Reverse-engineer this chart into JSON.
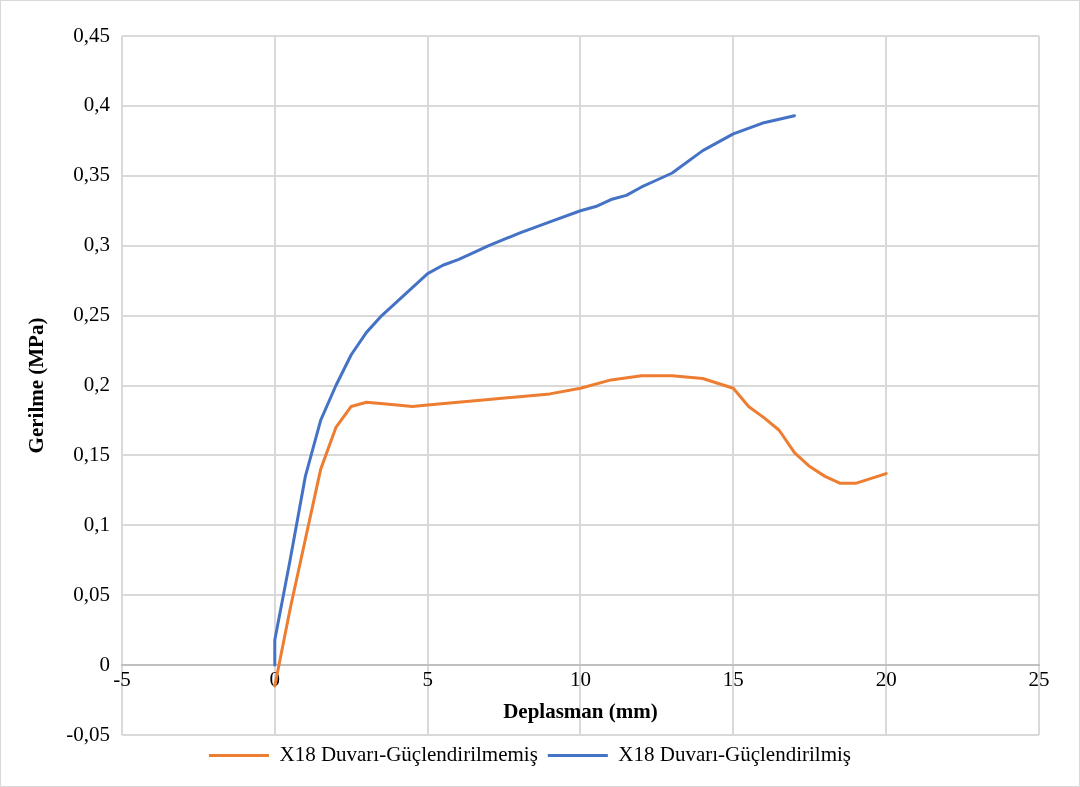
{
  "chart_data": {
    "type": "line",
    "xlabel": "Deplasman (mm)",
    "ylabel": "Gerilme (MPa)",
    "xlim": [
      -5,
      25
    ],
    "xticks": [
      -5,
      0,
      5,
      10,
      15,
      20,
      25
    ],
    "ylim": [
      -0.05,
      0.45
    ],
    "yticks": [
      {
        "value": -0.05,
        "label": "-0,05"
      },
      {
        "value": 0,
        "label": "0"
      },
      {
        "value": 0.05,
        "label": "0,05"
      },
      {
        "value": 0.1,
        "label": "0,1"
      },
      {
        "value": 0.15,
        "label": "0,15"
      },
      {
        "value": 0.2,
        "label": "0,2"
      },
      {
        "value": 0.25,
        "label": "0,25"
      },
      {
        "value": 0.3,
        "label": "0,3"
      },
      {
        "value": 0.35,
        "label": "0,35"
      },
      {
        "value": 0.4,
        "label": "0,4"
      },
      {
        "value": 0.45,
        "label": "0,45"
      }
    ],
    "grid": true,
    "legend": "bottom",
    "marker": "none",
    "line_style": "solid",
    "series": [
      {
        "name": "X18 Duvarı-Güçlendirilmemiş",
        "color": "#ed7d31",
        "x": [
          0,
          0.5,
          1,
          1.5,
          2,
          2.5,
          3,
          4,
          4.5,
          5,
          6,
          7,
          8,
          9,
          10,
          11,
          12,
          13,
          14,
          15,
          15.5,
          16,
          16.5,
          17,
          17.5,
          18,
          18.5,
          19,
          20
        ],
        "values": [
          -0.015,
          0.04,
          0.09,
          0.14,
          0.17,
          0.185,
          0.188,
          0.186,
          0.185,
          0.186,
          0.188,
          0.19,
          0.192,
          0.194,
          0.198,
          0.204,
          0.207,
          0.207,
          0.205,
          0.198,
          0.185,
          0.177,
          0.168,
          0.152,
          0.142,
          0.135,
          0.13,
          0.13,
          0.137
        ]
      },
      {
        "name": "X18 Duvarı-Güçlendirilmiş",
        "color": "#4472c4",
        "x": [
          0,
          0,
          0.5,
          1,
          1.5,
          2,
          2.5,
          3,
          3.5,
          4,
          4.5,
          5,
          5.5,
          6,
          7,
          8,
          9,
          10,
          10.5,
          11,
          11.5,
          12,
          12.5,
          13,
          14,
          15,
          16,
          17
        ],
        "values": [
          0,
          0.018,
          0.075,
          0.135,
          0.175,
          0.2,
          0.222,
          0.238,
          0.25,
          0.26,
          0.27,
          0.28,
          0.286,
          0.29,
          0.3,
          0.309,
          0.317,
          0.325,
          0.328,
          0.333,
          0.336,
          0.342,
          0.347,
          0.352,
          0.368,
          0.38,
          0.388,
          0.393
        ]
      }
    ]
  }
}
